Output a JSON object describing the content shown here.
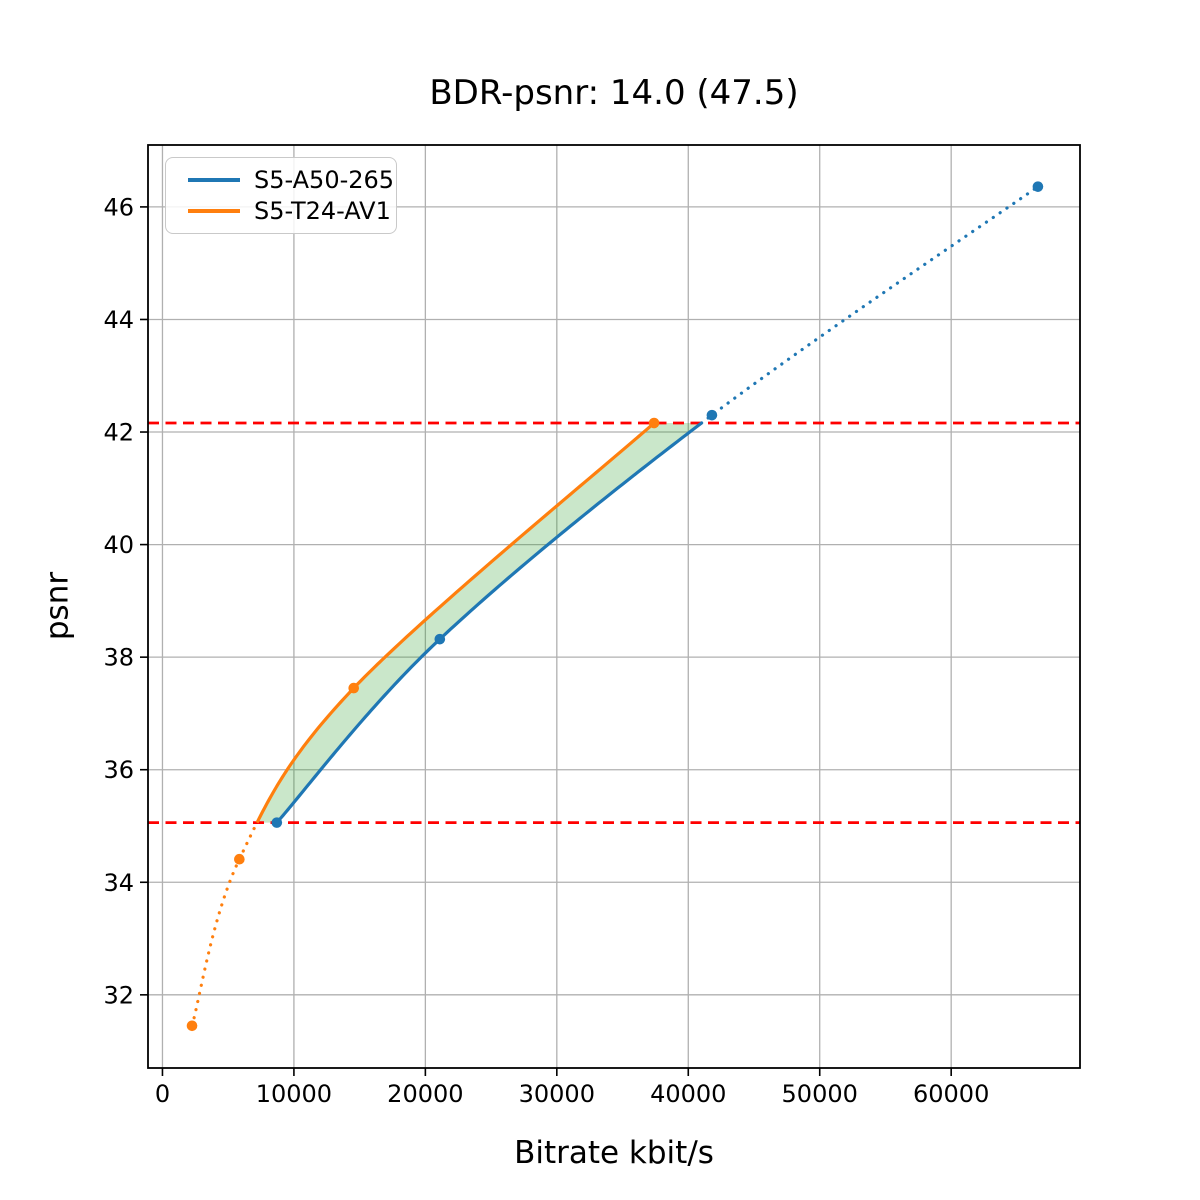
{
  "chart_data": {
    "type": "line",
    "title": "BDR-psnr: 14.0 (47.5)",
    "xlabel": "Bitrate kbit/s",
    "ylabel": "psnr",
    "xlim": [
      -1100,
      69800
    ],
    "ylim": [
      30.7,
      47.1
    ],
    "xticks": [
      0,
      10000,
      20000,
      30000,
      40000,
      50000,
      60000
    ],
    "yticks": [
      32,
      34,
      36,
      38,
      40,
      42,
      44,
      46
    ],
    "grid": true,
    "grid_color": "#b0b0b0",
    "legend_position": "upper left",
    "overlap_psnr_range": [
      35.06,
      42.16
    ],
    "series": [
      {
        "name": "S5-A50-265",
        "color": "#1f77b4",
        "marker": "circle",
        "x": [
          8700,
          21100,
          41800,
          66600
        ],
        "y": [
          35.06,
          38.32,
          42.3,
          46.36
        ]
      },
      {
        "name": "S5-T24-AV1",
        "color": "#ff7f0e",
        "marker": "circle",
        "x": [
          2250,
          5850,
          14550,
          37400
        ],
        "y": [
          31.45,
          34.41,
          37.45,
          42.16
        ]
      }
    ],
    "reference_lines": [
      {
        "axis": "y",
        "value": 42.16,
        "color": "#ff0000",
        "style": "dashed"
      },
      {
        "axis": "y",
        "value": 35.06,
        "color": "#ff0000",
        "style": "dashed"
      }
    ],
    "fill_between": {
      "series": [
        "S5-T24-AV1",
        "S5-A50-265"
      ],
      "psnr_range": [
        35.06,
        42.16
      ],
      "color": "#2ca02c",
      "alpha": 0.25
    }
  }
}
